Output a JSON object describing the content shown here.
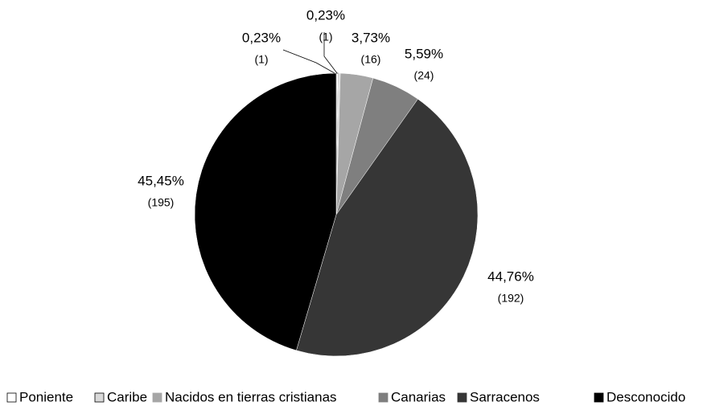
{
  "chart_data": {
    "type": "pie",
    "categories": [
      "Poniente",
      "Caribe",
      "Nacidos en tierras cristianas",
      "Canarias",
      "Sarracenos",
      "Desconocido"
    ],
    "values": [
      0.23,
      0.23,
      3.73,
      5.59,
      44.76,
      45.45
    ],
    "value_labels": [
      "0,23%",
      "0,23%",
      "3,73%",
      "5,59%",
      "44,76%",
      "45,45%"
    ],
    "counts": [
      1,
      1,
      16,
      24,
      192,
      195
    ],
    "count_labels": [
      "(1)",
      "(1)",
      "(16)",
      "(24)",
      "(192)",
      "(195)"
    ],
    "colors": [
      "#ffffff",
      "#d9d9d9",
      "#a6a6a6",
      "#7f7f7f",
      "#363636",
      "#000000"
    ],
    "legend": "bottom"
  }
}
